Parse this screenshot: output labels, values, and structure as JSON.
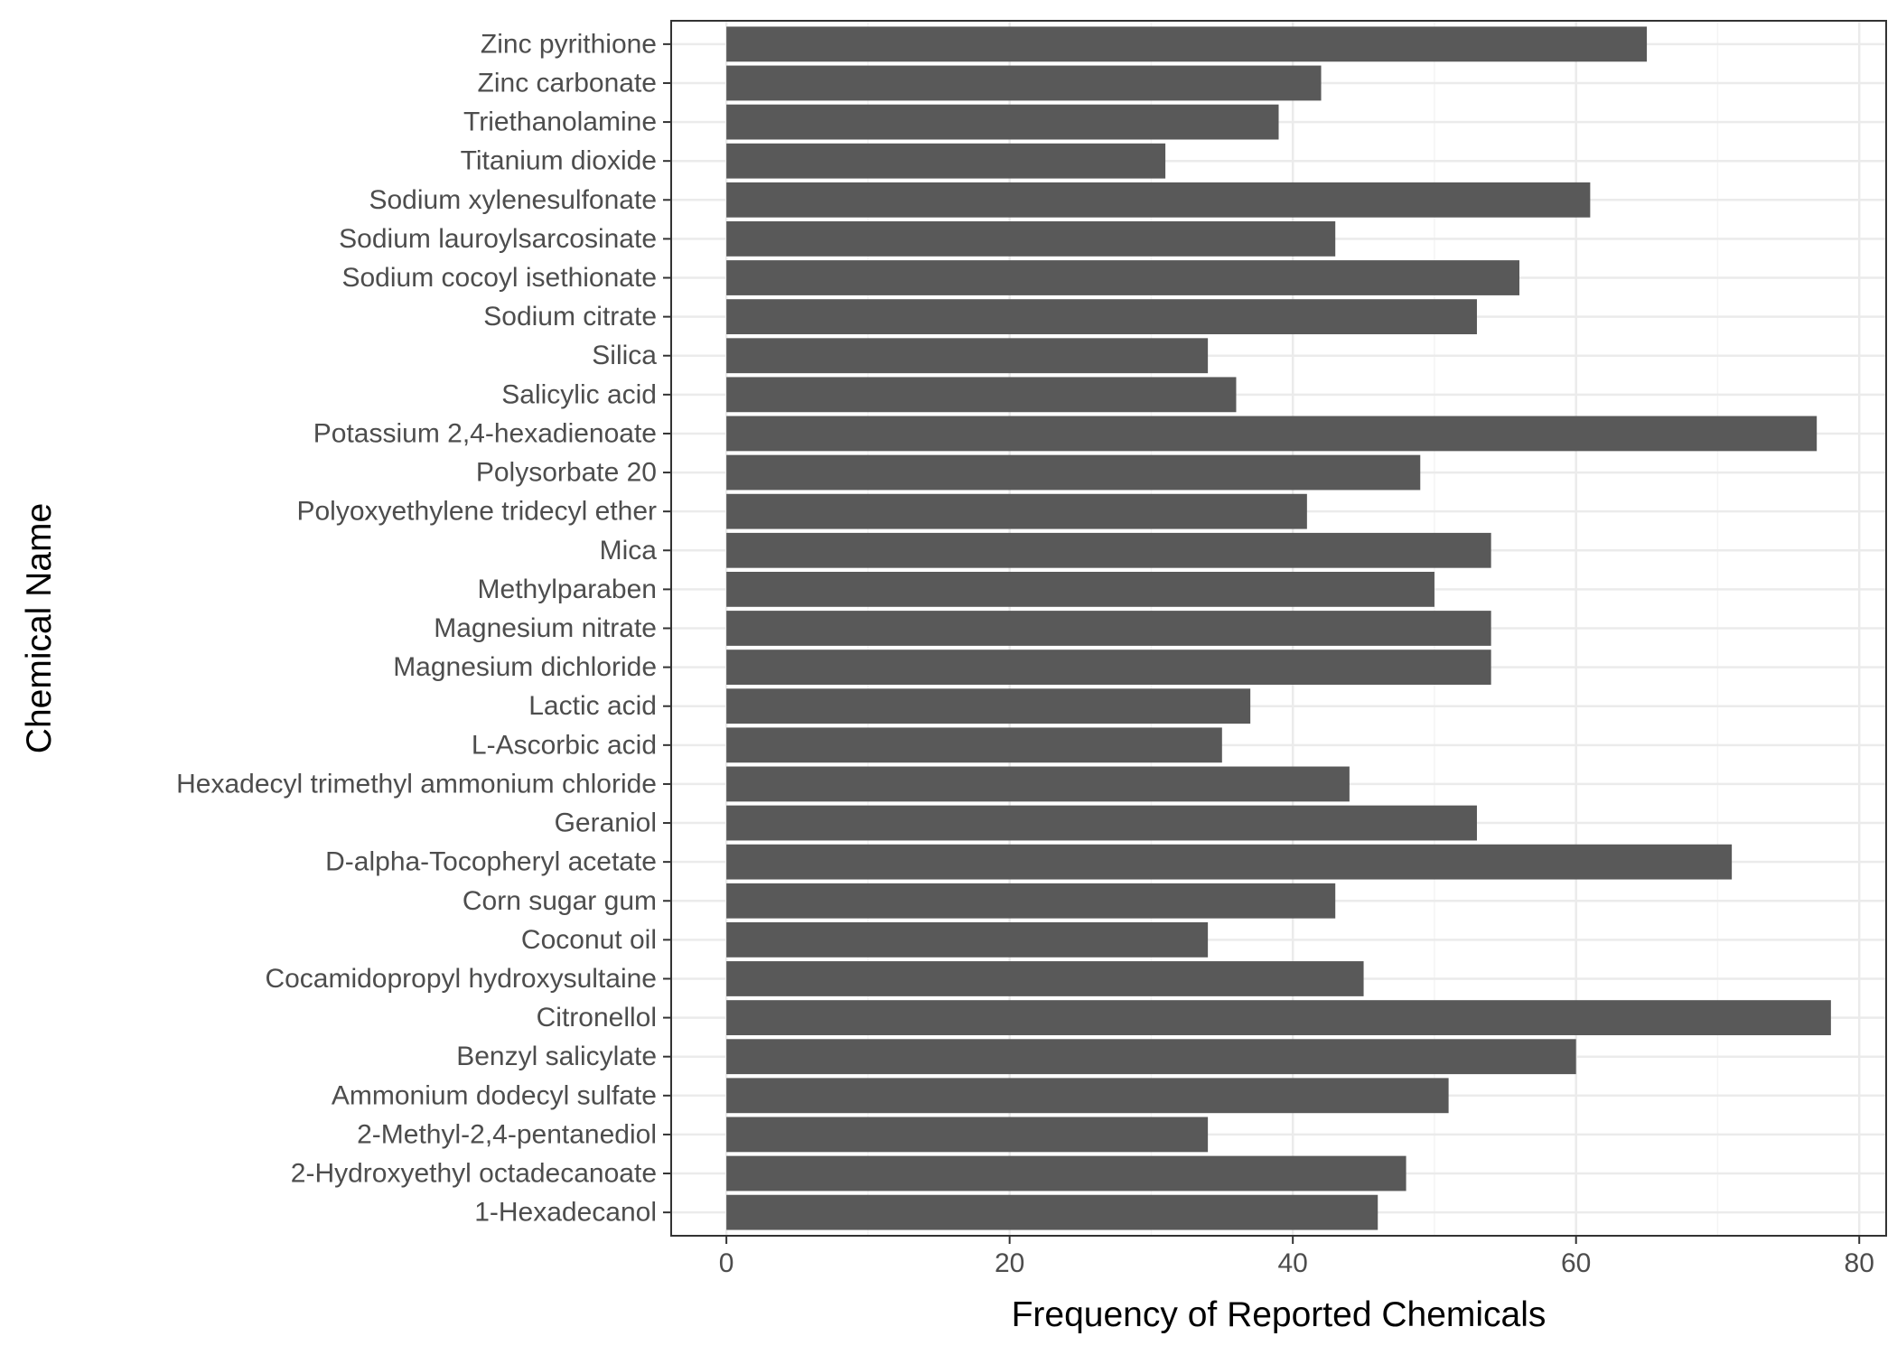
{
  "chart_data": {
    "type": "bar",
    "orientation": "horizontal",
    "title": "",
    "xlabel": "Frequency of Reported Chemicals",
    "ylabel": "Chemical Name",
    "xlim": [
      -3.9,
      81.9
    ],
    "xticks": [
      0,
      20,
      40,
      60,
      80
    ],
    "grid": true,
    "legend": "none",
    "colors": {
      "bar": "#595959",
      "grid_major": "#ebebeb",
      "grid_minor": "#f4f4f4",
      "panel_border": "#333333"
    },
    "categories": [
      "Zinc pyrithione",
      "Zinc carbonate",
      "Triethanolamine",
      "Titanium dioxide",
      "Sodium xylenesulfonate",
      "Sodium lauroylsarcosinate",
      "Sodium cocoyl isethionate",
      "Sodium citrate",
      "Silica",
      "Salicylic acid",
      "Potassium 2,4-hexadienoate",
      "Polysorbate 20",
      "Polyoxyethylene tridecyl ether",
      "Mica",
      "Methylparaben",
      "Magnesium nitrate",
      "Magnesium dichloride",
      "Lactic acid",
      "L-Ascorbic acid",
      "Hexadecyl trimethyl ammonium chloride",
      "Geraniol",
      "D-alpha-Tocopheryl acetate",
      "Corn sugar gum",
      "Coconut oil",
      "Cocamidopropyl hydroxysultaine",
      "Citronellol",
      "Benzyl salicylate",
      "Ammonium dodecyl sulfate",
      "2-Methyl-2,4-pentanediol",
      "2-Hydroxyethyl octadecanoate",
      "1-Hexadecanol"
    ],
    "values": [
      65,
      42,
      39,
      31,
      61,
      43,
      56,
      53,
      34,
      36,
      77,
      49,
      41,
      54,
      50,
      54,
      54,
      37,
      35,
      44,
      53,
      71,
      43,
      34,
      45,
      78,
      60,
      51,
      34,
      48,
      46
    ]
  }
}
